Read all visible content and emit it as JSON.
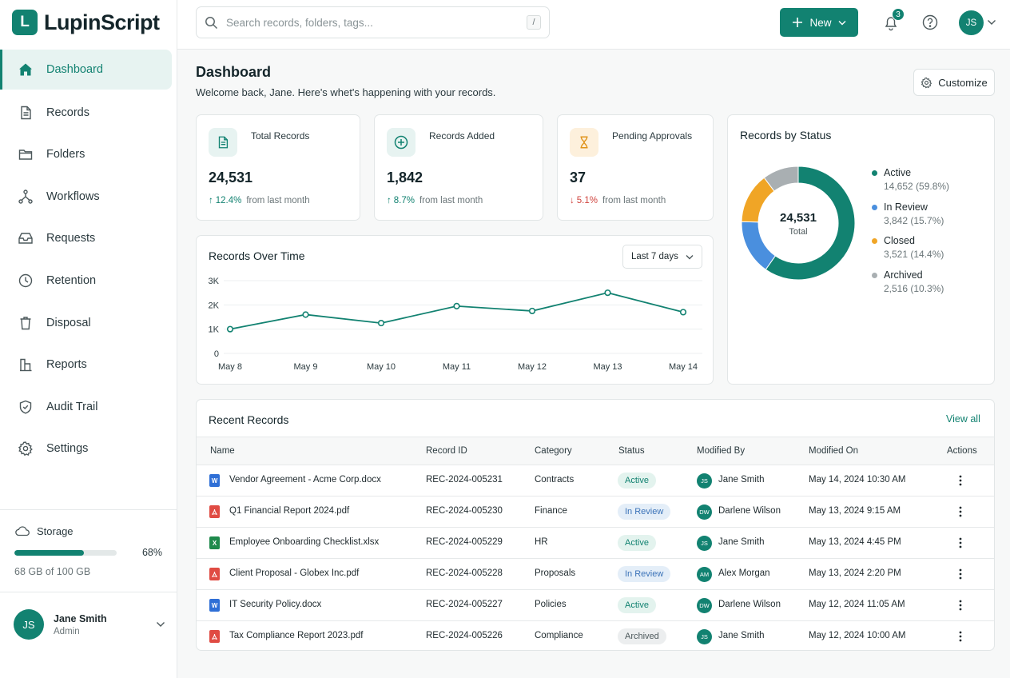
{
  "app": {
    "logo_letter": "L",
    "name": "LupinScript"
  },
  "sidebar": {
    "items": [
      {
        "label": "Dashboard",
        "icon": "home-icon",
        "active": true
      },
      {
        "label": "Records",
        "icon": "document-icon"
      },
      {
        "label": "Folders",
        "icon": "folder-icon"
      },
      {
        "label": "Workflows",
        "icon": "workflow-icon"
      },
      {
        "label": "Requests",
        "icon": "inbox-icon"
      },
      {
        "label": "Retention",
        "icon": "clock-icon"
      },
      {
        "label": "Disposal",
        "icon": "trash-icon"
      },
      {
        "label": "Reports",
        "icon": "reports-icon"
      },
      {
        "label": "Audit Trail",
        "icon": "shield-icon"
      },
      {
        "label": "Settings",
        "icon": "gear-icon"
      }
    ],
    "storage": {
      "label": "Storage",
      "percent_label": "68%",
      "percent": 68,
      "detail": "68 GB of 100 GB"
    },
    "user": {
      "initials": "JS",
      "name": "Jane Smith",
      "role": "Admin"
    }
  },
  "topbar": {
    "search_placeholder": "Search records, folders, tags...",
    "search_shortcut": "/",
    "new_label": "New",
    "notification_count": "3",
    "avatar_initials": "JS"
  },
  "header": {
    "title": "Dashboard",
    "subtitle": "Welcome back, Jane. Here's whet's happening with your records.",
    "customize_label": "Customize"
  },
  "stats": [
    {
      "label": "Total Records",
      "value": "24,531",
      "delta": "12.4%",
      "delta_text": "from last month",
      "direction": "up",
      "icon": "document-icon"
    },
    {
      "label": "Records Added",
      "value": "1,842",
      "delta": "8.7%",
      "delta_text": "from last month",
      "direction": "up",
      "icon": "plus-circle-icon"
    },
    {
      "label": "Pending Approvals",
      "value": "37",
      "delta": "5.1%",
      "delta_text": "from last month",
      "direction": "down",
      "icon": "hourglass-icon"
    }
  ],
  "colors": {
    "accent": "#128271",
    "blue": "#4a8fde",
    "orange": "#f0a526",
    "gray": "#a9afb2",
    "down": "#d0443e"
  },
  "chart_data": [
    {
      "type": "line",
      "title": "Records Over Time",
      "range_label": "Last 7 days",
      "categories": [
        "May 8",
        "May 9",
        "May 10",
        "May 11",
        "May 12",
        "May 13",
        "May 14"
      ],
      "values": [
        1000,
        1600,
        1250,
        1950,
        1750,
        2500,
        1700
      ],
      "yticks": [
        "0",
        "1K",
        "2K",
        "3K"
      ],
      "ylim": [
        0,
        3000
      ],
      "grid": true
    },
    {
      "type": "pie",
      "title": "Records by Status",
      "center_value": "24,531",
      "center_label": "Total",
      "legend_position": "right",
      "slices": [
        {
          "name": "Active",
          "value": 14652,
          "detail": "14,652 (59.8%)",
          "color": "#128271"
        },
        {
          "name": "In Review",
          "value": 3842,
          "detail": "3,842 (15.7%)",
          "color": "#4a8fde"
        },
        {
          "name": "Closed",
          "value": 3521,
          "detail": "3,521 (14.4%)",
          "color": "#f0a526"
        },
        {
          "name": "Archived",
          "value": 2516,
          "detail": "2,516 (10.3%)",
          "color": "#a9afb2"
        }
      ]
    }
  ],
  "recent": {
    "title": "Recent Records",
    "view_all": "View all",
    "columns": [
      "Name",
      "Record ID",
      "Category",
      "Status",
      "Modified By",
      "Modified On",
      "Actions"
    ],
    "rows": [
      {
        "file_type": "word",
        "name": "Vendor Agreement - Acme Corp.docx",
        "id": "REC-2024-005231",
        "category": "Contracts",
        "status": "Active",
        "initials": "JS",
        "by": "Jane Smith",
        "on": "May 14, 2024 10:30 AM"
      },
      {
        "file_type": "pdf",
        "name": "Q1 Financial Report 2024.pdf",
        "id": "REC-2024-005230",
        "category": "Finance",
        "status": "In Review",
        "initials": "DW",
        "by": "Darlene Wilson",
        "on": "May 13, 2024 9:15 AM"
      },
      {
        "file_type": "excel",
        "name": "Employee Onboarding Checklist.xlsx",
        "id": "REC-2024-005229",
        "category": "HR",
        "status": "Active",
        "initials": "JS",
        "by": "Jane Smith",
        "on": "May 13, 2024 4:45 PM"
      },
      {
        "file_type": "pdf",
        "name": "Client Proposal - Globex Inc.pdf",
        "id": "REC-2024-005228",
        "category": "Proposals",
        "status": "In Review",
        "initials": "AM",
        "by": "Alex Morgan",
        "on": "May 13, 2024 2:20 PM"
      },
      {
        "file_type": "word",
        "name": "IT Security Policy.docx",
        "id": "REC-2024-005227",
        "category": "Policies",
        "status": "Active",
        "initials": "DW",
        "by": "Darlene Wilson",
        "on": "May 12, 2024 11:05 AM"
      },
      {
        "file_type": "pdf",
        "name": "Tax Compliance Report 2023.pdf",
        "id": "REC-2024-005226",
        "category": "Compliance",
        "status": "Archived",
        "initials": "JS",
        "by": "Jane Smith",
        "on": "May 12, 2024 10:00 AM"
      }
    ]
  }
}
